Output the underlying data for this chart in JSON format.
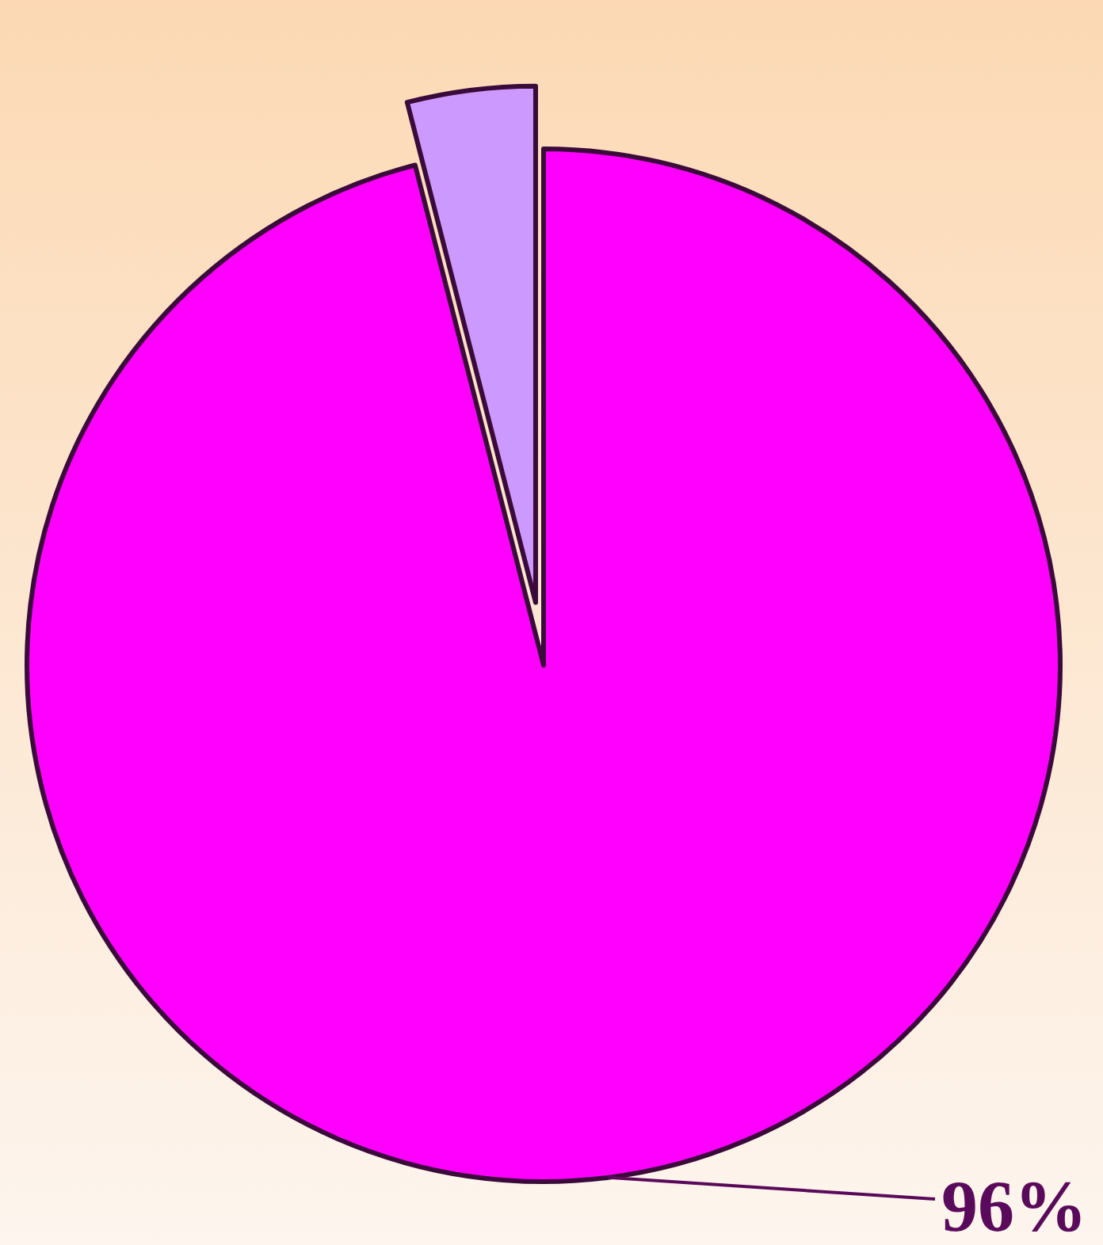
{
  "chart_data": {
    "type": "pie",
    "categories": [
      null,
      null
    ],
    "values": [
      96,
      4
    ],
    "colors": [
      "#ff00ff",
      "#cc99ff"
    ],
    "value_labels": [
      "96%",
      null
    ]
  }
}
